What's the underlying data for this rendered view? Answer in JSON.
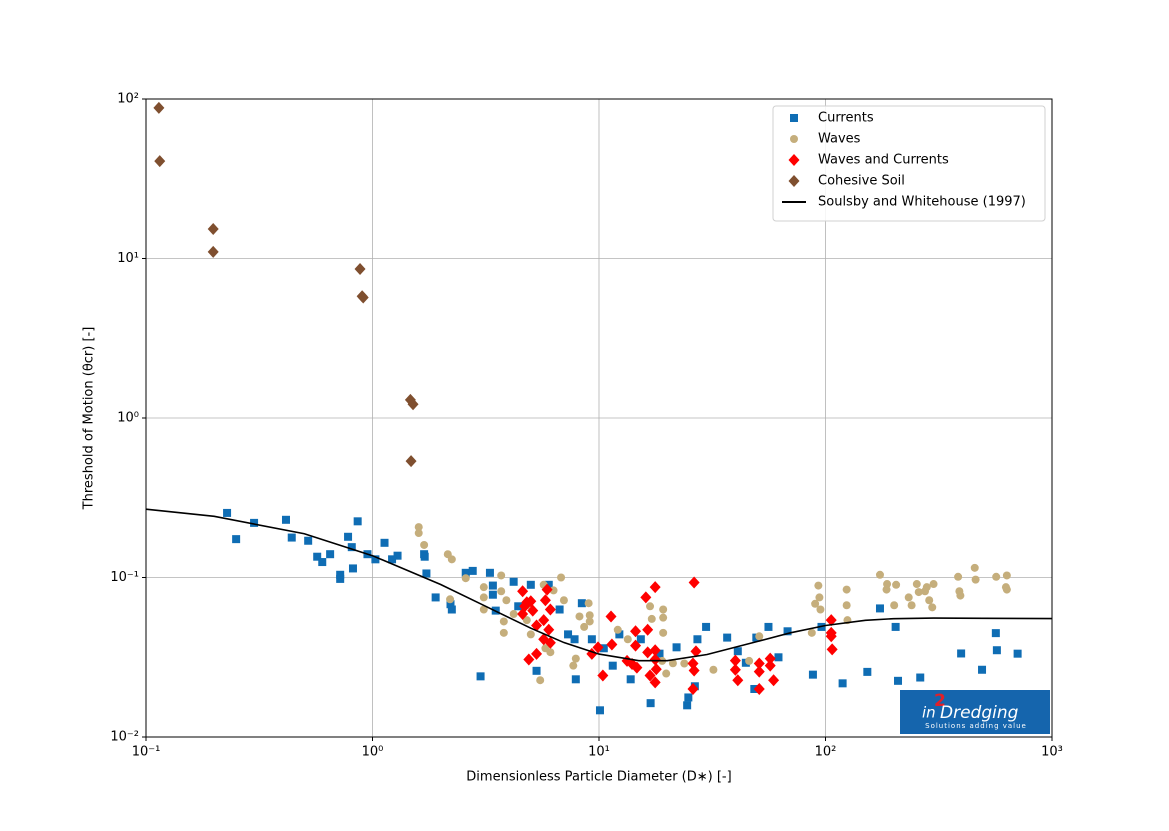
{
  "chart_data": {
    "type": "scatter",
    "xlabel": "Dimensionless Particle Diameter (D∗) [-]",
    "ylabel": "Threshold of Motion (θcr) [-]",
    "xscale": "log",
    "yscale": "log",
    "grid": true,
    "legend": "upper right",
    "xlim": [
      0.1,
      1000
    ],
    "xticks": [
      {
        "value": 0.1,
        "label": "10⁻¹"
      },
      {
        "value": 1,
        "label": "10⁰"
      },
      {
        "value": 10,
        "label": "10¹"
      },
      {
        "value": 100,
        "label": "10²"
      },
      {
        "value": 1000,
        "label": "10³"
      }
    ],
    "ylim": [
      0.01,
      100
    ],
    "yticks": [
      {
        "value": 0.01,
        "label": "10⁻²"
      },
      {
        "value": 0.1,
        "label": "10⁻¹"
      },
      {
        "value": 1,
        "label": "10⁰"
      },
      {
        "value": 10,
        "label": "10¹"
      },
      {
        "value": 100,
        "label": "10²"
      }
    ],
    "series": [
      {
        "name": "Currents",
        "color": "#0f6db4",
        "marker": "square",
        "x": [
          0.228,
          0.25,
          0.3,
          0.415,
          0.44,
          0.52,
          0.57,
          0.6,
          0.65,
          0.72,
          0.72,
          0.78,
          0.81,
          0.82,
          0.86,
          0.95,
          1.03,
          1.13,
          1.29,
          1.22,
          1.69,
          1.73,
          1.7,
          1.9,
          2.21,
          2.24,
          2.58,
          2.77,
          3.3,
          3.4,
          3.4,
          3.0,
          3.5,
          4.2,
          4.4,
          5.0,
          5.3,
          6.0,
          6.7,
          7.3,
          7.8,
          7.9,
          8.4,
          9.3,
          10.1,
          10.5,
          11.5,
          12.3,
          13.8,
          15.3,
          16.9,
          18.5,
          22,
          24.5,
          24.8,
          26.5,
          27.2,
          29.7,
          36.8,
          41,
          44.5,
          48.5,
          49.5,
          56,
          62,
          68,
          88,
          96,
          119,
          153,
          204,
          209,
          262,
          397,
          491,
          565,
          571,
          705,
          174
        ],
        "values": [
          0.254,
          0.174,
          0.22,
          0.23,
          0.178,
          0.17,
          0.135,
          0.125,
          0.14,
          0.104,
          0.098,
          0.18,
          0.155,
          0.114,
          0.225,
          0.14,
          0.13,
          0.165,
          0.137,
          0.13,
          0.14,
          0.106,
          0.135,
          0.075,
          0.068,
          0.063,
          0.107,
          0.11,
          0.107,
          0.089,
          0.078,
          0.024,
          0.062,
          0.094,
          0.066,
          0.09,
          0.026,
          0.09,
          0.063,
          0.044,
          0.041,
          0.023,
          0.069,
          0.041,
          0.0147,
          0.036,
          0.028,
          0.044,
          0.023,
          0.041,
          0.0163,
          0.0333,
          0.0365,
          0.0158,
          0.0177,
          0.0208,
          0.041,
          0.049,
          0.042,
          0.0345,
          0.0292,
          0.02,
          0.042,
          0.049,
          0.0316,
          0.046,
          0.0246,
          0.049,
          0.0217,
          0.0256,
          0.049,
          0.0225,
          0.0236,
          0.0334,
          0.0264,
          0.0448,
          0.035,
          0.0333,
          0.064
        ]
      },
      {
        "name": "Waves",
        "color": "#c5ae7c",
        "marker": "circle",
        "x": [
          1.6,
          1.6,
          1.69,
          2.15,
          2.24,
          2.2,
          2.58,
          3.1,
          3.1,
          3.1,
          3.7,
          3.7,
          3.8,
          3.8,
          3.9,
          4.2,
          4.8,
          4.8,
          5.0,
          5.5,
          5.7,
          5.8,
          6.1,
          6.3,
          6.8,
          7.0,
          7.7,
          7.9,
          8.2,
          8.6,
          9.0,
          9.1,
          9.1,
          12.1,
          13.4,
          16.8,
          17.1,
          19.2,
          19.2,
          19.2,
          19.0,
          19.8,
          21.2,
          23.8,
          32,
          46,
          51,
          87,
          90,
          93,
          94,
          95,
          124,
          124,
          125,
          174,
          187,
          201,
          205,
          233,
          240,
          253,
          258,
          280,
          287,
          296,
          300,
          385,
          390,
          394,
          456,
          460,
          567,
          626,
          632,
          632,
          275,
          186
        ],
        "values": [
          0.207,
          0.19,
          0.16,
          0.14,
          0.13,
          0.073,
          0.099,
          0.087,
          0.075,
          0.063,
          0.103,
          0.082,
          0.053,
          0.045,
          0.072,
          0.059,
          0.067,
          0.054,
          0.044,
          0.0227,
          0.09,
          0.036,
          0.034,
          0.083,
          0.1,
          0.072,
          0.028,
          0.031,
          0.057,
          0.049,
          0.069,
          0.058,
          0.053,
          0.047,
          0.041,
          0.066,
          0.055,
          0.063,
          0.056,
          0.045,
          0.03,
          0.025,
          0.029,
          0.0289,
          0.0264,
          0.03,
          0.0428,
          0.045,
          0.0684,
          0.089,
          0.075,
          0.063,
          0.084,
          0.067,
          0.054,
          0.104,
          0.091,
          0.067,
          0.09,
          0.075,
          0.067,
          0.091,
          0.081,
          0.087,
          0.072,
          0.065,
          0.091,
          0.101,
          0.082,
          0.077,
          0.115,
          0.097,
          0.101,
          0.087,
          0.103,
          0.084,
          0.082,
          0.084
        ]
      },
      {
        "name": "Waves and Currents",
        "color": "#ff0000",
        "marker": "diamond",
        "x": [
          4.6,
          4.8,
          4.7,
          4.6,
          4.9,
          5.3,
          5.0,
          5.1,
          5.3,
          5.7,
          5.8,
          5.9,
          6.1,
          6.0,
          5.7,
          6.1,
          9.3,
          9.9,
          10.4,
          11.3,
          11.4,
          13.3,
          14.0,
          14.5,
          14.5,
          14.7,
          16.1,
          16.4,
          16.4,
          16.8,
          17.7,
          17.7,
          17.7,
          17.9,
          17.7,
          26.0,
          26.0,
          26.3,
          26.8,
          26.3,
          40,
          40,
          41,
          51,
          51,
          51,
          57,
          57,
          59,
          106,
          106,
          106,
          107
        ],
        "values": [
          0.082,
          0.07,
          0.066,
          0.059,
          0.0306,
          0.0332,
          0.071,
          0.062,
          0.05,
          0.054,
          0.072,
          0.084,
          0.063,
          0.047,
          0.041,
          0.039,
          0.0332,
          0.0365,
          0.0243,
          0.057,
          0.038,
          0.03,
          0.0287,
          0.046,
          0.0374,
          0.0272,
          0.075,
          0.0339,
          0.047,
          0.0243,
          0.087,
          0.035,
          0.0306,
          0.0266,
          0.022,
          0.0289,
          0.02,
          0.0261,
          0.0344,
          0.093,
          0.0301,
          0.0264,
          0.0227,
          0.0289,
          0.0257,
          0.02,
          0.031,
          0.028,
          0.0227,
          0.054,
          0.045,
          0.0428,
          0.0354
        ]
      },
      {
        "name": "Cohesive Soil",
        "color": "#7f4f2f",
        "marker": "diamond",
        "x": [
          0.114,
          0.115,
          0.198,
          0.198,
          0.881,
          0.9,
          0.91,
          1.47,
          1.51,
          1.48
        ],
        "values": [
          88,
          40.8,
          15.3,
          11.0,
          8.6,
          5.8,
          5.7,
          1.3,
          1.22,
          0.537
        ]
      },
      {
        "name": "Soulsby and Whitehouse (1997)",
        "color": "#000000",
        "marker": "line",
        "x": [
          0.1,
          0.2,
          0.5,
          1,
          2,
          3,
          5,
          7,
          10,
          15,
          20,
          30,
          50,
          70,
          100,
          150,
          200,
          300,
          500,
          1000
        ],
        "values": [
          0.268,
          0.242,
          0.188,
          0.137,
          0.0904,
          0.0684,
          0.0481,
          0.0391,
          0.0331,
          0.0301,
          0.0301,
          0.0329,
          0.0397,
          0.045,
          0.05,
          0.0539,
          0.0552,
          0.0557,
          0.0555,
          0.0553
        ]
      }
    ]
  },
  "logo": {
    "prefix": "in",
    "mark": "2",
    "name": "Dredging",
    "tagline": "Solutions adding value"
  }
}
